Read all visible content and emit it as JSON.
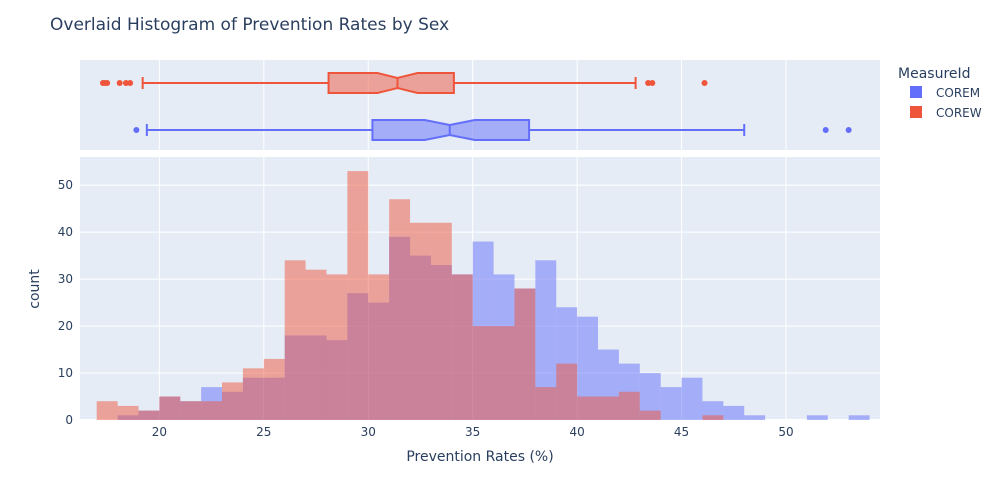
{
  "chart_data": {
    "type": "histogram",
    "title": "Overlaid Histogram of Prevention Rates by Sex",
    "xlabel": "Prevention Rates (%)",
    "ylabel": "count",
    "xlim": [
      16.2,
      54.5
    ],
    "ylim": [
      0,
      56
    ],
    "x_ticks": [
      20,
      25,
      30,
      35,
      40,
      45,
      50
    ],
    "y_ticks": [
      0,
      10,
      20,
      30,
      40,
      50
    ],
    "bin_start": 17,
    "bin_width": 1,
    "grid": true,
    "legend": {
      "title": "MeasureId",
      "placement": "top-right"
    },
    "series": [
      {
        "name": "COREM",
        "color": "#636efa",
        "counts": [
          0,
          1,
          2,
          5,
          4,
          7,
          6,
          9,
          9,
          18,
          18,
          17,
          27,
          25,
          39,
          35,
          33,
          31,
          38,
          31,
          28,
          34,
          24,
          22,
          15,
          12,
          10,
          7,
          9,
          4,
          3,
          1,
          0,
          0,
          1,
          0,
          1
        ],
        "box": {
          "q1": 30.2,
          "median": 33.9,
          "q3": 37.7,
          "lower_fence": 19.4,
          "upper_fence": 48.0,
          "outliers": [
            18.9,
            51.9,
            53.0
          ]
        }
      },
      {
        "name": "COREW",
        "color": "#ef553b",
        "counts": [
          4,
          3,
          2,
          5,
          4,
          4,
          8,
          11,
          13,
          34,
          32,
          31,
          53,
          31,
          47,
          42,
          42,
          31,
          20,
          20,
          28,
          7,
          12,
          5,
          5,
          6,
          2,
          0,
          0,
          1,
          0,
          0,
          0,
          0,
          0,
          0,
          0
        ],
        "box": {
          "q1": 28.1,
          "median": 31.4,
          "q3": 34.1,
          "lower_fence": 19.2,
          "upper_fence": 42.8,
          "outliers": [
            17.3,
            17.4,
            17.5,
            18.1,
            18.4,
            18.6,
            43.4,
            43.6,
            46.1
          ]
        }
      }
    ]
  }
}
